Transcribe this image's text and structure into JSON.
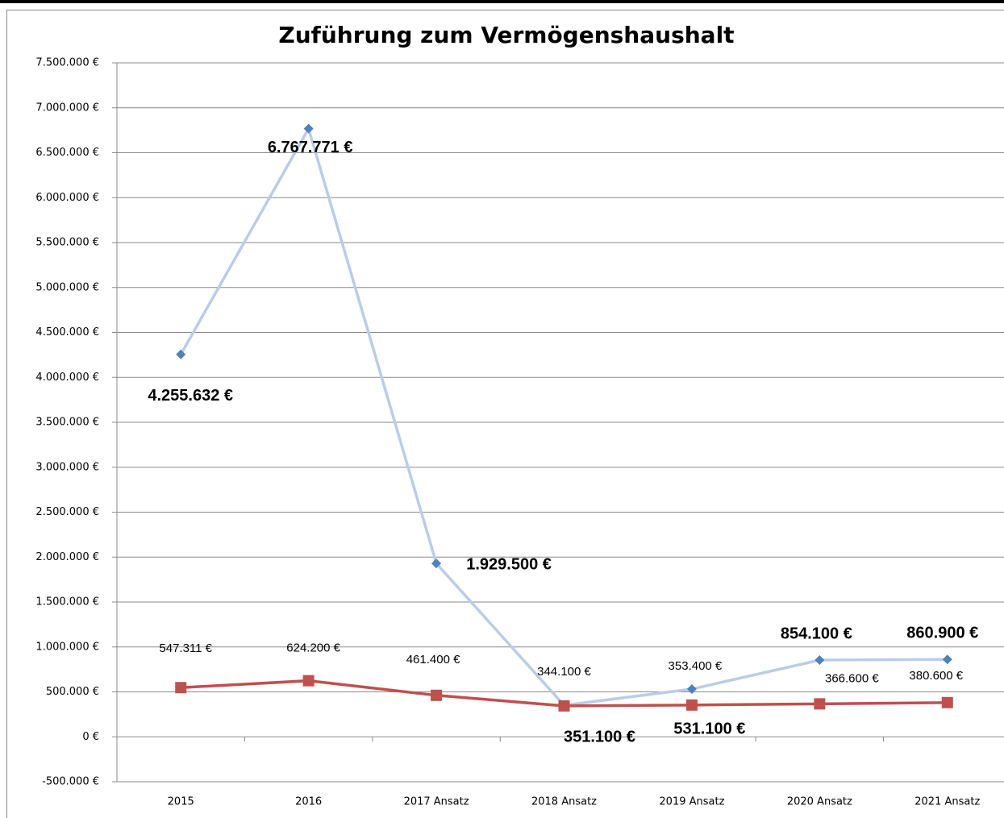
{
  "chart_data": {
    "type": "line",
    "title": "Zuführung zum Vermögenshaushalt",
    "categories": [
      "2015",
      "2016",
      "2017 Ansatz",
      "2018 Ansatz",
      "2019 Ansatz",
      "2020 Ansatz",
      "2021 Ansatz"
    ],
    "series": [
      {
        "color": "#b9cde9",
        "marker_color": "#4f81bd",
        "marker": "diamond",
        "values": [
          4255632,
          6767771,
          1929500,
          351100,
          531100,
          854100,
          860900
        ],
        "value_labels": [
          "4.255.632 €",
          "6.767.771 €",
          "1.929.500 €",
          "351.100 €",
          "531.100 €",
          "854.100 €",
          "860.900 €"
        ]
      },
      {
        "color": "#c0504d",
        "marker_color": "#c0504d",
        "marker": "square",
        "values": [
          547311,
          624200,
          461400,
          344100,
          353400,
          366600,
          380600
        ],
        "value_labels": [
          "547.311 €",
          "624.200 €",
          "461.400 €",
          "344.100 €",
          "353.400 €",
          "366.600 €",
          "380.600 €"
        ]
      }
    ],
    "ylim": [
      -500000,
      7500000
    ],
    "yticks": [
      {
        "value": -500000,
        "label": "-500.000 €"
      },
      {
        "value": 0,
        "label": "0 €"
      },
      {
        "value": 500000,
        "label": "500.000 €"
      },
      {
        "value": 1000000,
        "label": "1.000.000 €"
      },
      {
        "value": 1500000,
        "label": "1.500.000 €"
      },
      {
        "value": 2000000,
        "label": "2.000.000 €"
      },
      {
        "value": 2500000,
        "label": "2.500.000 €"
      },
      {
        "value": 3000000,
        "label": "3.000.000 €"
      },
      {
        "value": 3500000,
        "label": "3.500.000 €"
      },
      {
        "value": 4000000,
        "label": "4.000.000 €"
      },
      {
        "value": 4500000,
        "label": "4.500.000 €"
      },
      {
        "value": 5000000,
        "label": "5.000.000 €"
      },
      {
        "value": 5500000,
        "label": "5.500.000 €"
      },
      {
        "value": 6000000,
        "label": "6.000.000 €"
      },
      {
        "value": 6500000,
        "label": "6.500.000 €"
      },
      {
        "value": 7000000,
        "label": "7.000.000 €"
      },
      {
        "value": 7500000,
        "label": "7.500.000 €"
      }
    ],
    "grid": true
  }
}
